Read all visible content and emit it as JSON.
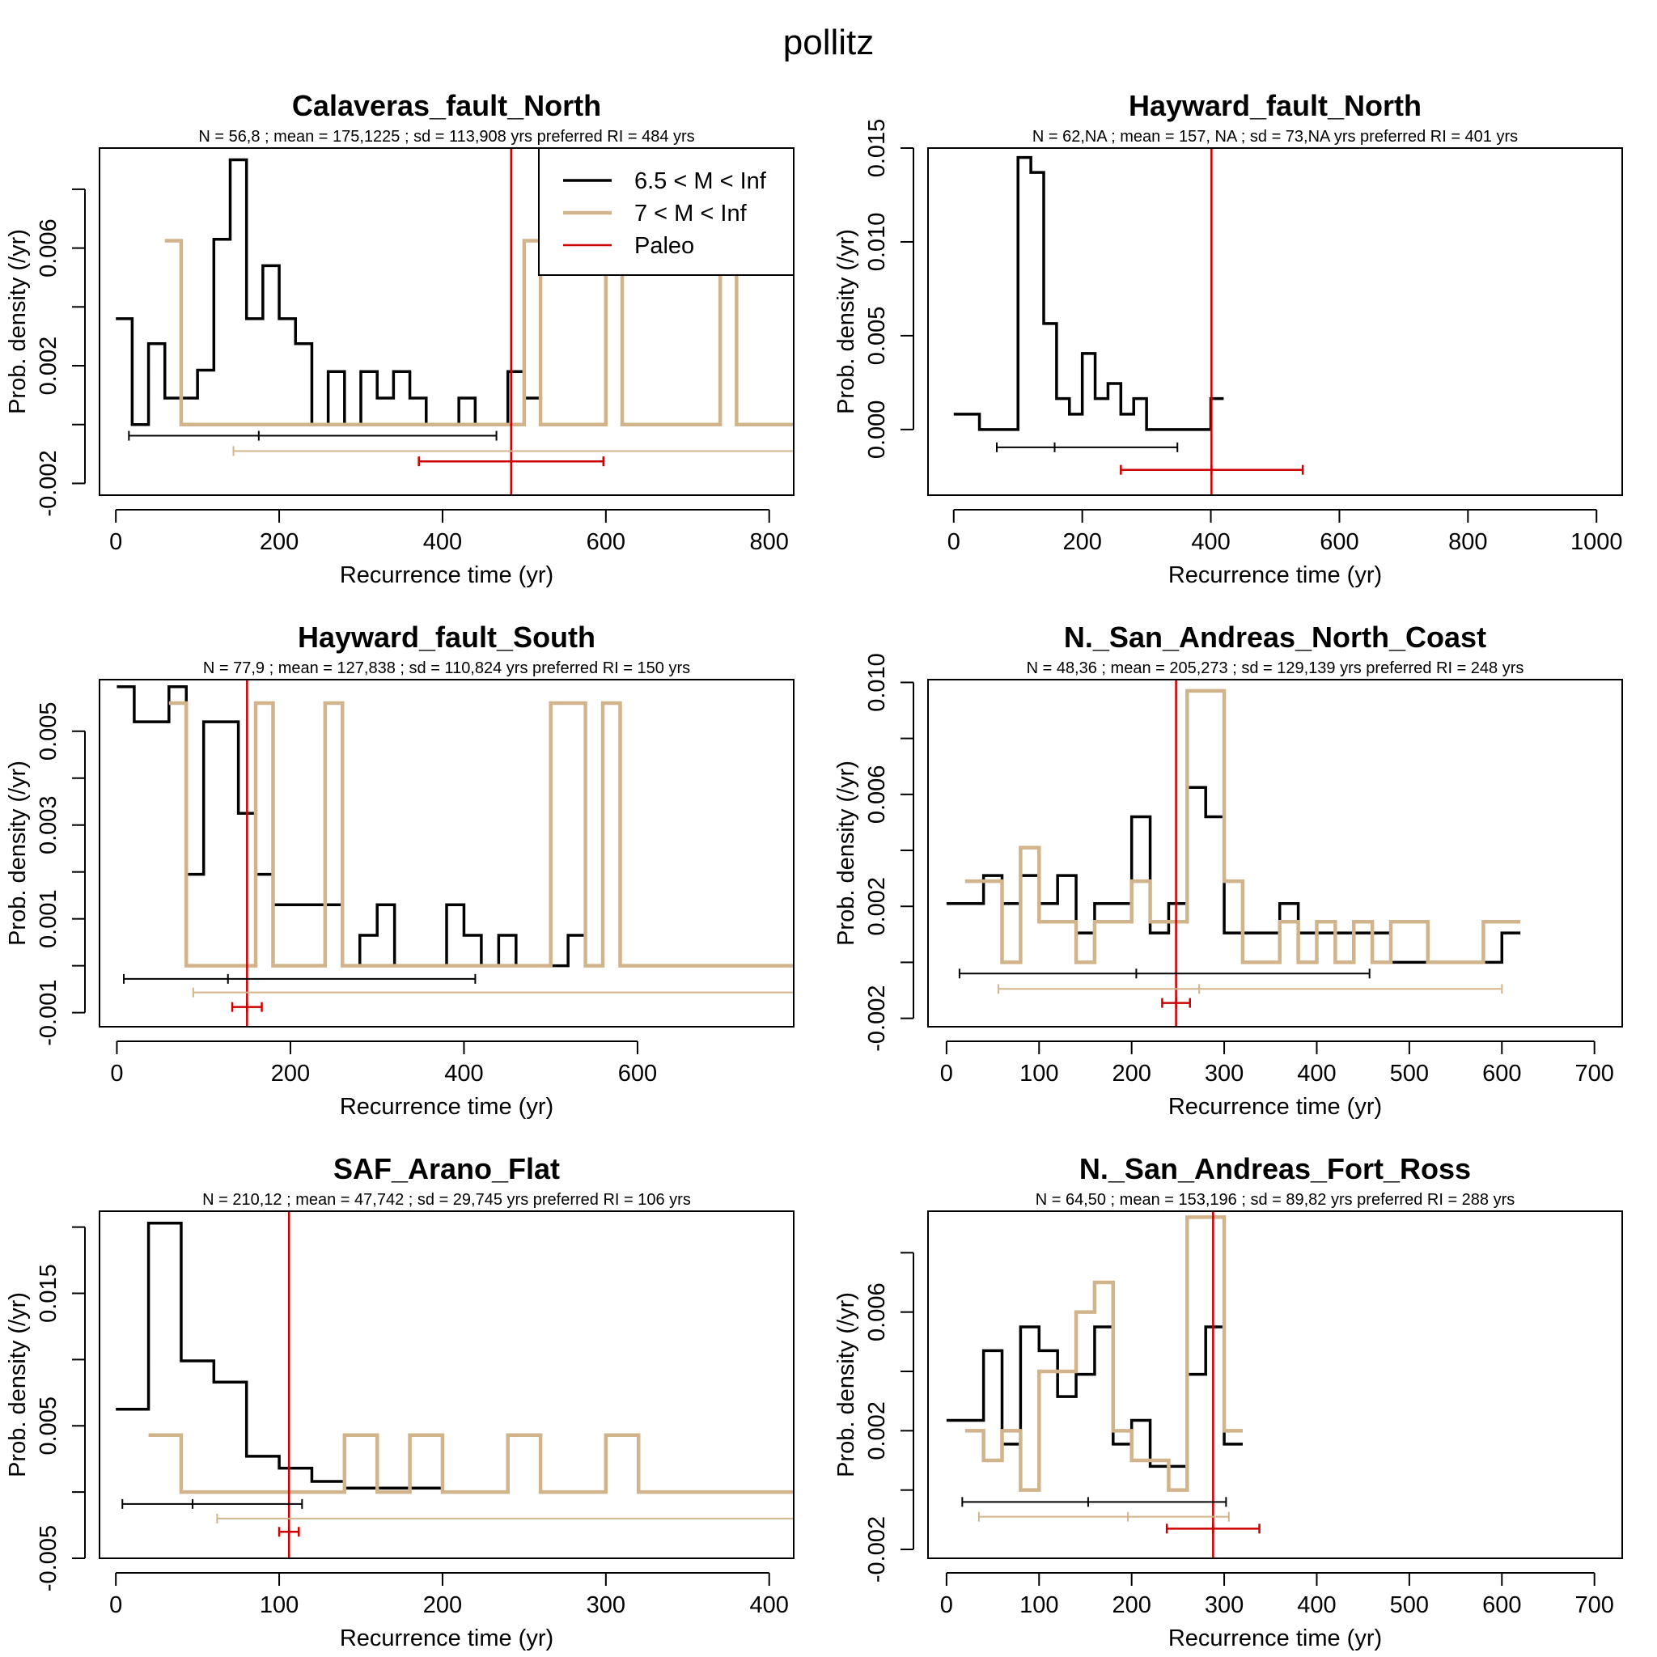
{
  "page_title": "pollitz",
  "colors": {
    "m65": "#000000",
    "m7": "#d2b48c",
    "paleo": "#cc0000"
  },
  "legend": {
    "entries": [
      "6.5 < M < Inf",
      "7 < M < Inf",
      "Paleo"
    ]
  },
  "chart_data": [
    {
      "type": "line",
      "title": "Calaveras_fault_North",
      "subtitle": "N = 56,8 ;  mean =  175,1225 ;   sd = 113,908  yrs   preferred RI = 484 yrs",
      "xlabel": "Recurrence time (yr)",
      "ylabel": "Prob. density (/yr)",
      "xlim": [
        -20,
        830
      ],
      "ylim": [
        -0.0024,
        0.0094
      ],
      "xticks": [
        0,
        200,
        400,
        600,
        800
      ],
      "yticks": [
        -0.002,
        0,
        0.002,
        0.004,
        0.006,
        0.008
      ],
      "ytick_labels": [
        "-0.002",
        "",
        "0.002",
        "",
        "0.006",
        ""
      ],
      "legend": {
        "position": "top-right"
      },
      "series": [
        {
          "name": "6.5 < M < Inf",
          "step_edges": [
            0,
            20,
            40,
            60,
            80,
            100,
            120,
            140,
            160,
            180,
            200,
            220,
            240,
            260,
            280,
            300,
            320,
            340,
            360,
            380,
            400,
            420,
            440,
            460,
            480,
            500,
            520
          ],
          "values": [
            0.0036,
            0.0,
            0.00275,
            0.0009,
            0.0009,
            0.00185,
            0.0063,
            0.009,
            0.0036,
            0.0054,
            0.0036,
            0.00275,
            0.0,
            0.0018,
            0.0,
            0.0018,
            0.0009,
            0.0018,
            0.0009,
            0.0,
            0.0,
            0.0009,
            0.0,
            0.0,
            0.0018,
            0.0009
          ]
        },
        {
          "name": "7 < M < Inf",
          "step_edges": [
            60,
            80,
            100,
            120,
            140,
            160,
            180,
            200,
            220,
            240,
            260,
            280,
            300,
            320,
            340,
            360,
            380,
            400,
            420,
            440,
            460,
            480,
            500,
            520,
            540,
            560,
            580,
            600,
            620,
            640,
            660,
            680,
            700,
            720,
            740,
            760,
            780,
            800,
            820,
            830
          ],
          "values": [
            0.00625,
            0,
            0,
            0,
            0,
            0,
            0,
            0,
            0,
            0,
            0,
            0,
            0,
            0,
            0,
            0,
            0,
            0,
            0,
            0,
            0,
            0,
            0.00625,
            0,
            0,
            0,
            0,
            0.00625,
            0,
            0,
            0,
            0,
            0,
            0,
            0.00625,
            0,
            0,
            0,
            0
          ]
        }
      ],
      "intervals": [
        {
          "series": "6.5 < M < Inf",
          "lo": 16,
          "mean": 175,
          "hi": 466,
          "y": -0.00038
        },
        {
          "series": "7 < M < Inf",
          "lo": 144,
          "mean": null,
          "hi": 830,
          "y": -0.0009
        },
        {
          "series": "Paleo",
          "lo": 371,
          "mean": 484,
          "hi": 597,
          "y": -0.00125
        }
      ],
      "paleo_line": 484
    },
    {
      "type": "line",
      "title": "Hayward_fault_North",
      "subtitle": "N = 62,NA ;  mean = 157, NA ;   sd = 73,NA  yrs   preferred RI = 401 yrs",
      "xlabel": "Recurrence time (yr)",
      "ylabel": "Prob. density (/yr)",
      "xlim": [
        -40,
        1040
      ],
      "ylim": [
        -0.0035,
        0.015
      ],
      "xticks": [
        0,
        200,
        400,
        600,
        800,
        1000
      ],
      "yticks": [
        0,
        0.005,
        0.01,
        0.015
      ],
      "ytick_labels": [
        "0.000",
        "0.005",
        "0.010",
        "0.015"
      ],
      "series": [
        {
          "name": "6.5 < M < Inf",
          "step_edges": [
            0,
            40,
            100,
            120,
            140,
            160,
            180,
            200,
            220,
            240,
            260,
            280,
            300,
            320,
            340,
            360,
            380,
            400,
            420
          ],
          "values": [
            0.00082,
            0.0,
            0.0145,
            0.0137,
            0.00565,
            0.00165,
            0.00082,
            0.00405,
            0.00165,
            0.00245,
            0.00082,
            0.00165,
            0.0,
            0.0,
            0.0,
            0.0,
            0.0,
            0.00165
          ]
        }
      ],
      "intervals": [
        {
          "series": "6.5 < M < Inf",
          "lo": 67,
          "mean": 157,
          "hi": 348,
          "y": -0.00095
        },
        {
          "series": "Paleo",
          "lo": 260,
          "mean": 401,
          "hi": 543,
          "y": -0.00215
        }
      ],
      "paleo_line": 401
    },
    {
      "type": "line",
      "title": "Hayward_fault_South",
      "subtitle": "N = 77,9 ;  mean = 127,838 ;   sd = 110,824  yrs   preferred RI = 150 yrs",
      "xlabel": "Recurrence time (yr)",
      "ylabel": "Prob. density (/yr)",
      "xlim": [
        -20,
        780
      ],
      "ylim": [
        -0.0013,
        0.0061
      ],
      "xticks": [
        0,
        200,
        400,
        600
      ],
      "yticks": [
        -0.001,
        0,
        0.001,
        0.002,
        0.003,
        0.004,
        0.005
      ],
      "ytick_labels": [
        "-0.001",
        "",
        "0.001",
        "",
        "0.003",
        "",
        "0.005"
      ],
      "series": [
        {
          "name": "6.5 < M < Inf",
          "step_edges": [
            0,
            20,
            60,
            80,
            100,
            140,
            160,
            180,
            200,
            220,
            240,
            260,
            280,
            300,
            320,
            340,
            360,
            380,
            400,
            420,
            440,
            460,
            480,
            500,
            520,
            540,
            560
          ],
          "values": [
            0.00595,
            0.0052,
            0.00595,
            0.00195,
            0.0052,
            0.00325,
            0.00195,
            0.0013,
            0.0013,
            0.0013,
            0.0013,
            0.0,
            0.00065,
            0.0013,
            0.0,
            0.0,
            0.0,
            0.0013,
            0.00065,
            0.0,
            0.00065,
            0.0,
            0.0,
            0.0,
            0.00065,
            0.0
          ]
        },
        {
          "name": "7 < M < Inf",
          "step_edges": [
            60,
            80,
            100,
            120,
            140,
            160,
            180,
            200,
            220,
            240,
            260,
            280,
            300,
            320,
            340,
            360,
            380,
            400,
            420,
            440,
            460,
            480,
            500,
            520,
            540,
            560,
            580,
            600,
            780
          ],
          "values": [
            0.0056,
            0,
            0,
            0,
            0,
            0.0056,
            0,
            0,
            0,
            0.0056,
            0,
            0,
            0,
            0,
            0,
            0,
            0,
            0,
            0,
            0,
            0,
            0,
            0.0056,
            0.0056,
            0,
            0.0056,
            0,
            0
          ]
        }
      ],
      "intervals": [
        {
          "series": "6.5 < M < Inf",
          "lo": 8,
          "mean": 128,
          "hi": 413,
          "y": -0.00028
        },
        {
          "series": "7 < M < Inf",
          "lo": 88,
          "mean": null,
          "hi": 780,
          "y": -0.00057
        },
        {
          "series": "Paleo",
          "lo": 133,
          "mean": 150,
          "hi": 167,
          "y": -0.00088
        }
      ],
      "paleo_line": 150
    },
    {
      "type": "line",
      "title": "N._San_Andreas_North_Coast",
      "subtitle": "N = 48,36 ;  mean = 205,273 ;   sd = 129,139  yrs   preferred RI = 248 yrs",
      "xlabel": "Recurrence time (yr)",
      "ylabel": "Prob. density (/yr)",
      "xlim": [
        -20,
        730
      ],
      "ylim": [
        -0.0023,
        0.0101
      ],
      "xticks": [
        0,
        100,
        200,
        300,
        400,
        500,
        600,
        700
      ],
      "yticks": [
        -0.002,
        0,
        0.002,
        0.004,
        0.006,
        0.008,
        0.01
      ],
      "ytick_labels": [
        "-0.002",
        "",
        "0.002",
        "",
        "0.006",
        "",
        "0.010"
      ],
      "series": [
        {
          "name": "6.5 < M < Inf",
          "step_edges": [
            0,
            40,
            60,
            80,
            100,
            120,
            140,
            160,
            180,
            200,
            220,
            240,
            260,
            280,
            300,
            320,
            340,
            360,
            380,
            400,
            420,
            440,
            460,
            480,
            500,
            520,
            540,
            560,
            580,
            600,
            620
          ],
          "values": [
            0.0021,
            0.0031,
            0.0021,
            0.0031,
            0.0021,
            0.0031,
            0.00105,
            0.0021,
            0.0021,
            0.0052,
            0.00105,
            0.0021,
            0.00625,
            0.0052,
            0.00105,
            0.00105,
            0.00105,
            0.0021,
            0.00105,
            0.00105,
            0.00105,
            0.00105,
            0.00105,
            0.0,
            0.0,
            0.0,
            0.0,
            0.0,
            0.0,
            0.00105
          ]
        },
        {
          "name": "7 < M < Inf",
          "step_edges": [
            20,
            60,
            80,
            100,
            120,
            140,
            160,
            180,
            200,
            220,
            240,
            260,
            280,
            300,
            320,
            340,
            360,
            380,
            400,
            420,
            440,
            460,
            480,
            500,
            520,
            540,
            560,
            580,
            600,
            620
          ],
          "values": [
            0.0029,
            0.0,
            0.0041,
            0.00145,
            0.00145,
            0.0,
            0.00145,
            0.00145,
            0.0029,
            0.00145,
            0.00145,
            0.0097,
            0.0097,
            0.0029,
            0.0,
            0.0,
            0.00145,
            0.0,
            0.00145,
            0.0,
            0.00145,
            0.0,
            0.00145,
            0.00145,
            0.0,
            0.0,
            0.0,
            0.00145,
            0.00145
          ]
        }
      ],
      "intervals": [
        {
          "series": "6.5 < M < Inf",
          "lo": 14,
          "mean": 205,
          "hi": 457,
          "y": -0.0004
        },
        {
          "series": "7 < M < Inf",
          "lo": 56,
          "mean": 273,
          "hi": 600,
          "y": -0.00095
        },
        {
          "series": "Paleo",
          "lo": 233,
          "mean": 248,
          "hi": 263,
          "y": -0.00145
        }
      ],
      "paleo_line": 248
    },
    {
      "type": "line",
      "title": "SAF_Arano_Flat",
      "subtitle": "N = 210,12 ;  mean =  47,742 ;   sd =  29,745  yrs   preferred RI = 106 yrs",
      "xlabel": "Recurrence time (yr)",
      "ylabel": "Prob. density (/yr)",
      "xlim": [
        -10,
        415
      ],
      "ylim": [
        -0.005,
        0.0212
      ],
      "xticks": [
        0,
        100,
        200,
        300,
        400
      ],
      "yticks": [
        -0.005,
        0,
        0.005,
        0.01,
        0.015,
        0.02
      ],
      "ytick_labels": [
        "-0.005",
        "",
        "0.005",
        "",
        "0.015",
        ""
      ],
      "series": [
        {
          "name": "6.5 < M < Inf",
          "step_edges": [
            0,
            20,
            40,
            60,
            80,
            100,
            120,
            140,
            160,
            180,
            200,
            220
          ],
          "values": [
            0.00625,
            0.0203,
            0.0099,
            0.0083,
            0.0027,
            0.0018,
            0.0008,
            0.0003,
            0.0003,
            0.0003,
            0.0
          ]
        },
        {
          "name": "7 < M < Inf",
          "step_edges": [
            20,
            40,
            60,
            80,
            100,
            120,
            140,
            160,
            180,
            200,
            220,
            240,
            260,
            280,
            300,
            320,
            340,
            360,
            380,
            400,
            415
          ],
          "values": [
            0.0043,
            0,
            0,
            0,
            0,
            0,
            0.0043,
            0,
            0.0043,
            0,
            0,
            0.0043,
            0,
            0,
            0.0043,
            0,
            0,
            0,
            0,
            0
          ]
        }
      ],
      "intervals": [
        {
          "series": "6.5 < M < Inf",
          "lo": 4,
          "mean": 47,
          "hi": 114,
          "y": -0.0009
        },
        {
          "series": "7 < M < Inf",
          "lo": 62,
          "mean": null,
          "hi": 415,
          "y": -0.002
        },
        {
          "series": "Paleo",
          "lo": 100,
          "mean": 106,
          "hi": 112,
          "y": -0.003
        }
      ],
      "paleo_line": 106
    },
    {
      "type": "line",
      "title": "N._San_Andreas_Fort_Ross",
      "subtitle": "N = 64,50 ;  mean = 153,196 ;   sd = 89,82  yrs   preferred RI = 288 yrs",
      "xlabel": "Recurrence time (yr)",
      "ylabel": "Prob. density (/yr)",
      "xlim": [
        -20,
        730
      ],
      "ylim": [
        -0.0023,
        0.0094
      ],
      "xticks": [
        0,
        100,
        200,
        300,
        400,
        500,
        600,
        700
      ],
      "yticks": [
        -0.002,
        0,
        0.002,
        0.004,
        0.006,
        0.008
      ],
      "ytick_labels": [
        "-0.002",
        "",
        "0.002",
        "",
        "0.006",
        ""
      ],
      "series": [
        {
          "name": "6.5 < M < Inf",
          "step_edges": [
            0,
            40,
            60,
            80,
            100,
            120,
            140,
            160,
            180,
            200,
            220,
            240,
            260,
            280,
            300,
            320
          ],
          "values": [
            0.00235,
            0.0047,
            0.00155,
            0.0055,
            0.0047,
            0.00315,
            0.0039,
            0.0055,
            0.00155,
            0.00235,
            0.0008,
            0.0008,
            0.0039,
            0.0055,
            0.00155
          ]
        },
        {
          "name": "7 < M < Inf",
          "step_edges": [
            20,
            40,
            60,
            80,
            100,
            120,
            140,
            160,
            180,
            200,
            220,
            240,
            260,
            280,
            300,
            320
          ],
          "values": [
            0.002,
            0.001,
            0.002,
            0.0,
            0.004,
            0.004,
            0.006,
            0.007,
            0.002,
            0.001,
            0.001,
            0.0,
            0.0092,
            0.0092,
            0.002
          ]
        }
      ],
      "intervals": [
        {
          "series": "6.5 < M < Inf",
          "lo": 17,
          "mean": 153,
          "hi": 302,
          "y": -0.0004
        },
        {
          "series": "7 < M < Inf",
          "lo": 35,
          "mean": 196,
          "hi": 305,
          "y": -0.0009
        },
        {
          "series": "Paleo",
          "lo": 238,
          "mean": 288,
          "hi": 338,
          "y": -0.0013
        }
      ],
      "paleo_line": 288
    }
  ]
}
